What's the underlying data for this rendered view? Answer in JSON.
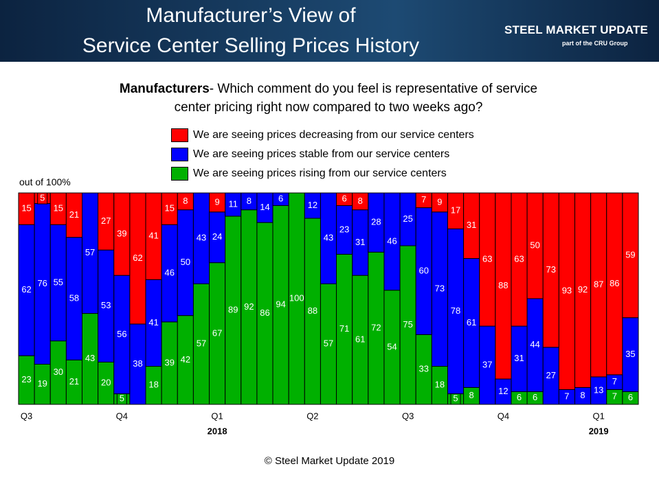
{
  "header": {
    "title": [
      "Manufacturer’s View of",
      "Service Center Selling Prices History"
    ],
    "logo": "STEEL MARKET UPDATE",
    "logo_sub": "part of the CRU Group"
  },
  "chart_data": {
    "type": "bar",
    "stacked": true,
    "subtitle_bold": "Manufacturers",
    "subtitle": "- Which comment do you feel is representative of service center pricing right now compared to two weeks ago?",
    "y_annotation": "out of 100%",
    "categories": [
      "Q3",
      null,
      null,
      null,
      null,
      null,
      "Q4",
      null,
      null,
      null,
      null,
      null,
      "Q1",
      null,
      null,
      null,
      null,
      null,
      "Q2",
      null,
      null,
      null,
      null,
      null,
      "Q3",
      null,
      null,
      null,
      null,
      null,
      "Q4",
      null,
      null,
      null,
      null,
      null,
      "Q1",
      null,
      null
    ],
    "year_labels": [
      null,
      null,
      null,
      null,
      null,
      null,
      null,
      null,
      null,
      null,
      null,
      null,
      "2018",
      null,
      null,
      null,
      null,
      null,
      null,
      null,
      null,
      null,
      null,
      null,
      null,
      null,
      null,
      null,
      null,
      null,
      null,
      null,
      null,
      null,
      null,
      null,
      "2019",
      null,
      null
    ],
    "ylim": [
      0,
      100
    ],
    "series": [
      {
        "name": "We are seeing prices rising from our service centers",
        "color": "#00b000",
        "values": [
          23,
          19,
          30,
          21,
          43,
          20,
          5,
          0,
          18,
          39,
          42,
          57,
          67,
          89,
          92,
          86,
          94,
          100,
          88,
          57,
          71,
          61,
          72,
          54,
          75,
          33,
          18,
          5,
          8,
          0,
          0,
          6,
          6,
          0,
          0,
          0,
          0,
          7,
          6
        ]
      },
      {
        "name": "We are seeing prices stable from our service centers",
        "color": "#0000ff",
        "values": [
          62,
          76,
          55,
          58,
          57,
          53,
          56,
          38,
          41,
          46,
          50,
          43,
          24,
          11,
          8,
          14,
          6,
          0,
          12,
          43,
          23,
          31,
          28,
          46,
          25,
          60,
          73,
          78,
          61,
          37,
          12,
          31,
          44,
          27,
          7,
          8,
          13,
          7,
          35
        ]
      },
      {
        "name": "We are seeing prices decreasing from our service centers",
        "color": "#ff0000",
        "values": [
          15,
          5,
          15,
          21,
          0,
          27,
          39,
          62,
          41,
          15,
          8,
          0,
          9,
          0,
          0,
          0,
          0,
          0,
          0,
          0,
          6,
          8,
          0,
          0,
          0,
          7,
          9,
          17,
          31,
          63,
          88,
          63,
          50,
          73,
          93,
          92,
          87,
          86,
          59
        ]
      }
    ],
    "footer": "© Steel Market Update 2019"
  }
}
